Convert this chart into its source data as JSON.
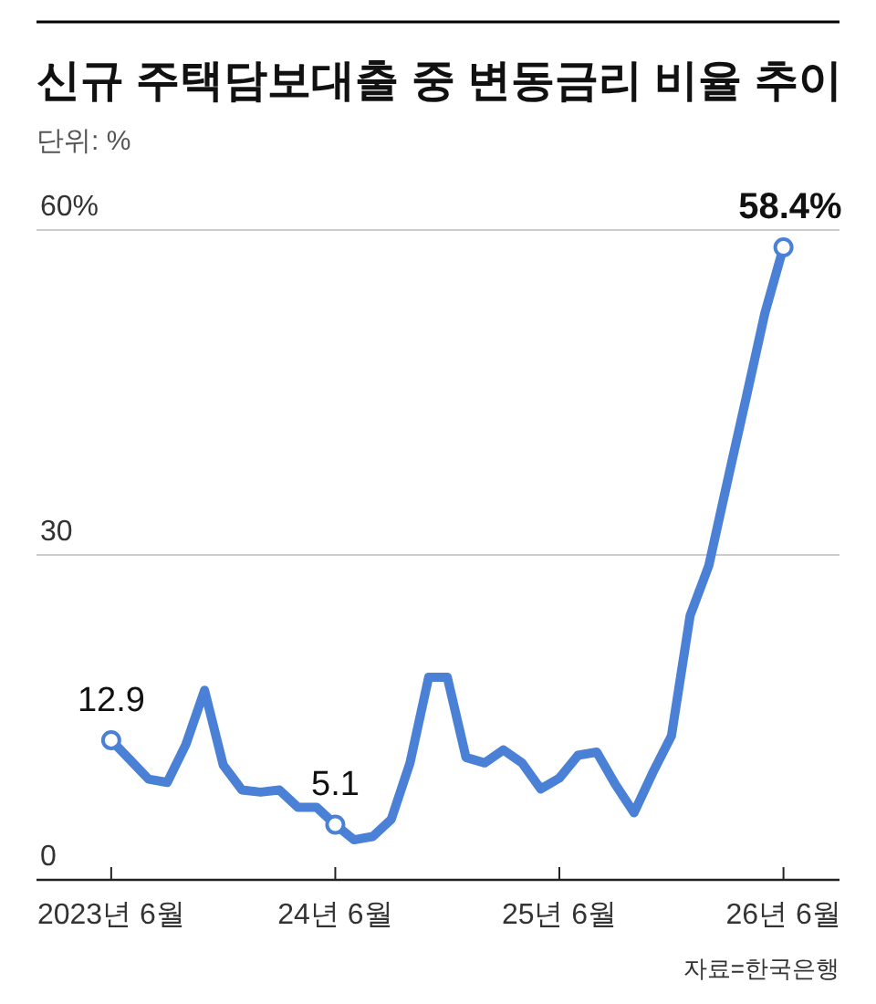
{
  "chart_data": {
    "type": "line",
    "title": "신규 주택담보대출 중 변동금리 비율 추이",
    "subtitle": "단위: %",
    "x": [
      "2023-06",
      "2023-07",
      "2023-08",
      "2023-09",
      "2023-10",
      "2023-11",
      "2023-12",
      "2024-01",
      "2024-02",
      "2024-03",
      "2024-04",
      "2024-05",
      "2024-06",
      "2024-07",
      "2024-08",
      "2024-09",
      "2024-10",
      "2024-11",
      "2024-12",
      "2025-01",
      "2025-02",
      "2025-03",
      "2025-04",
      "2025-05",
      "2025-06",
      "2025-07",
      "2025-08",
      "2025-09",
      "2025-10",
      "2025-11",
      "2025-12",
      "2026-01",
      "2026-02",
      "2026-03",
      "2026-04",
      "2026-05",
      "2026-06"
    ],
    "series": [
      {
        "color": "#4a80d6",
        "values": [
          12.9,
          11.1,
          9.3,
          9.0,
          12.5,
          17.5,
          10.6,
          8.3,
          8.1,
          8.3,
          6.7,
          6.7,
          5.1,
          3.7,
          4.0,
          5.6,
          10.8,
          18.7,
          18.7,
          11.3,
          10.8,
          12.0,
          10.8,
          8.4,
          9.4,
          11.5,
          11.8,
          8.8,
          6.2,
          9.9,
          13.3,
          24.4,
          29.0,
          36.8,
          44.5,
          52.3,
          58.4
        ],
        "value_labels": [
          "12.9",
          null,
          null,
          null,
          null,
          null,
          null,
          null,
          null,
          null,
          null,
          null,
          "5.1",
          null,
          null,
          null,
          null,
          null,
          null,
          null,
          null,
          null,
          null,
          null,
          null,
          null,
          null,
          null,
          null,
          null,
          null,
          null,
          null,
          null,
          null,
          null,
          "58.4%"
        ]
      }
    ],
    "xlim": [
      "2023-02",
      "2026-09"
    ],
    "ylim": [
      0,
      60
    ],
    "yticks": [
      0,
      30,
      {
        "value": 60,
        "label": "60%"
      }
    ],
    "xticks": [
      {
        "value": "2023-06",
        "label": "2023년 6월"
      },
      {
        "value": "2024-06",
        "label": "24년 6월"
      },
      {
        "value": "2025-06",
        "label": "25년 6월"
      },
      {
        "value": "2026-06",
        "label": "26년 6월"
      }
    ],
    "grid": "y",
    "line_style": "solid",
    "annotations": [
      "자료=한국은행"
    ]
  }
}
